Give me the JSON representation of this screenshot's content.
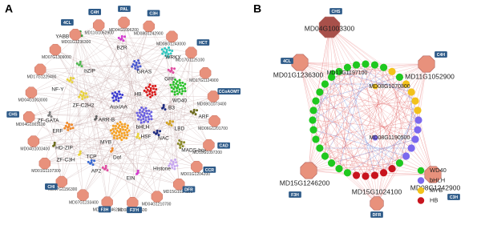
{
  "panel_a": {
    "label": "A",
    "genes": [
      {
        "id": "MD11G1052900",
        "enzyme": "C4H"
      },
      {
        "id": "MD04G1096200",
        "enzyme": "PAL"
      },
      {
        "id": "MD08G1242900",
        "enzyme": "C3H"
      },
      {
        "id": "MD08G1243000"
      },
      {
        "id": "MD17G1125100",
        "enzyme": "HCT"
      },
      {
        "id": "MD17G1124900"
      },
      {
        "id": "MD08G1073400",
        "enzyme": "CCoAOMT"
      },
      {
        "id": "MD06G1201700"
      },
      {
        "id": "MD10G1097200",
        "enzyme": "CAD"
      },
      {
        "id": "MD01G1204200",
        "enzyme": "CCR"
      },
      {
        "id": "MD15G1024100",
        "enzyme": "DFR"
      },
      {
        "id": "MD04G1210700"
      },
      {
        "id": "MD08G1071600",
        "enzyme": "F3'H"
      },
      {
        "id": "MD15G1246200",
        "enzyme": "F3H"
      },
      {
        "id": "MD07G1233400"
      },
      {
        "id": "MD07G1156300",
        "enzyme": "CHI"
      },
      {
        "id": "MD01G1107300"
      },
      {
        "id": "MD04G1003400"
      },
      {
        "id": "MD04G1003100",
        "enzyme": "CHS"
      },
      {
        "id": "MD04G1003000"
      },
      {
        "id": "MD17G1229400"
      },
      {
        "id": "MD07G1309000"
      },
      {
        "id": "MD01G1236300",
        "enzyme": "4CL"
      }
    ],
    "families": [
      "YABBY",
      "BZR",
      "WRKY",
      "bZIP",
      "GRAS",
      "NF-Y",
      "GRF",
      "HB",
      "WD40",
      "ZF-C2H2",
      "AuxIAA",
      "B3",
      "ARF",
      "ZF-GATA",
      "ERF",
      "ARR-B",
      "bHLH",
      "LBD",
      "MYB",
      "HSF",
      "NAC",
      "HD-ZIP",
      "TCP",
      "Dof",
      "MADS-box",
      "ZF-C3H",
      "AP2",
      "EIN",
      "Histone"
    ]
  },
  "panel_b": {
    "label": "B",
    "hubs": [
      {
        "id": "MD04G1003300",
        "enzyme": "CHS"
      },
      {
        "id": "MD11G1052900",
        "enzyme": "C4H"
      },
      {
        "id": "MD01G1236300",
        "enzyme": "4CL"
      },
      {
        "id": "MD08G1242900",
        "enzyme": "C3H"
      },
      {
        "id": "MD15G1246200",
        "enzyme": "F3H"
      },
      {
        "id": "MD15G1024100",
        "enzyme": "DFR"
      }
    ],
    "inner_genes": [
      "MD13G1197100",
      "MD08G1070800",
      "MD08G1190500"
    ],
    "legend": [
      "WD40",
      "bHLH",
      "MYB",
      "HB"
    ]
  }
}
